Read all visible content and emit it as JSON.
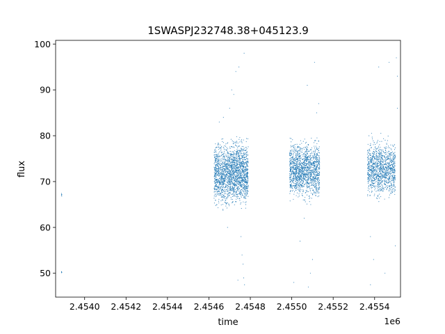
{
  "chart_data": {
    "type": "scatter",
    "title": "1SWASPJ232748.38+045123.9",
    "xlabel": "time",
    "ylabel": "flux",
    "x_offset_label": "1e6",
    "xlim": [
      2453860,
      2455525
    ],
    "ylim": [
      44.8,
      100.8
    ],
    "x_ticks": [
      2454000,
      2454200,
      2454400,
      2454600,
      2454800,
      2455000,
      2455200,
      2455400
    ],
    "x_tick_labels": [
      "2.4540",
      "2.4542",
      "2.4544",
      "2.4546",
      "2.4548",
      "2.4550",
      "2.4552",
      "2.4554"
    ],
    "y_ticks": [
      50,
      60,
      70,
      80,
      90,
      100
    ],
    "y_tick_labels": [
      "50",
      "60",
      "70",
      "80",
      "90",
      "100"
    ],
    "grid": false,
    "marker_color": "#1f77b4",
    "series": [
      {
        "clusters": [
          {
            "x_range": [
              2453888,
              2453890
            ],
            "y_center": 67.0,
            "y_spread": 0.6,
            "count": 6
          },
          {
            "x_range": [
              2453888,
              2453890
            ],
            "y_center": 50.2,
            "y_spread": 0.4,
            "count": 5
          },
          {
            "x_range": [
              2454625,
              2454705
            ],
            "y_center": 71.5,
            "y_spread": 9.0,
            "count": 900
          },
          {
            "x_range": [
              2454705,
              2454790
            ],
            "y_center": 72.0,
            "y_spread": 9.0,
            "count": 1100
          },
          {
            "x_range": [
              2454990,
              2455135
            ],
            "y_center": 72.5,
            "y_spread": 8.0,
            "count": 1500
          },
          {
            "x_range": [
              2455365,
              2455500
            ],
            "y_center": 72.8,
            "y_spread": 8.0,
            "count": 1200
          }
        ],
        "outliers": [
          [
            2454700,
            86
          ],
          [
            2454710,
            90
          ],
          [
            2454730,
            94
          ],
          [
            2454745,
            95
          ],
          [
            2454770,
            98
          ],
          [
            2454755,
            58
          ],
          [
            2454760,
            54
          ],
          [
            2454765,
            52
          ],
          [
            2454768,
            49
          ],
          [
            2454772,
            47.5
          ],
          [
            2454650,
            83
          ],
          [
            2454670,
            84
          ],
          [
            2454720,
            89
          ],
          [
            2454690,
            60
          ],
          [
            2454740,
            48.5
          ],
          [
            2455010,
            48
          ],
          [
            2455040,
            57
          ],
          [
            2455060,
            62
          ],
          [
            2455075,
            91
          ],
          [
            2455110,
            96
          ],
          [
            2455120,
            85
          ],
          [
            2455090,
            50
          ],
          [
            2455100,
            53
          ],
          [
            2455130,
            87
          ],
          [
            2455080,
            47
          ],
          [
            2455380,
            47.5
          ],
          [
            2455395,
            53
          ],
          [
            2455420,
            95
          ],
          [
            2455470,
            96
          ],
          [
            2455505,
            97
          ],
          [
            2455510,
            93
          ],
          [
            2455500,
            56
          ],
          [
            2455380,
            58
          ],
          [
            2455450,
            50
          ],
          [
            2455510,
            86
          ]
        ]
      }
    ]
  }
}
